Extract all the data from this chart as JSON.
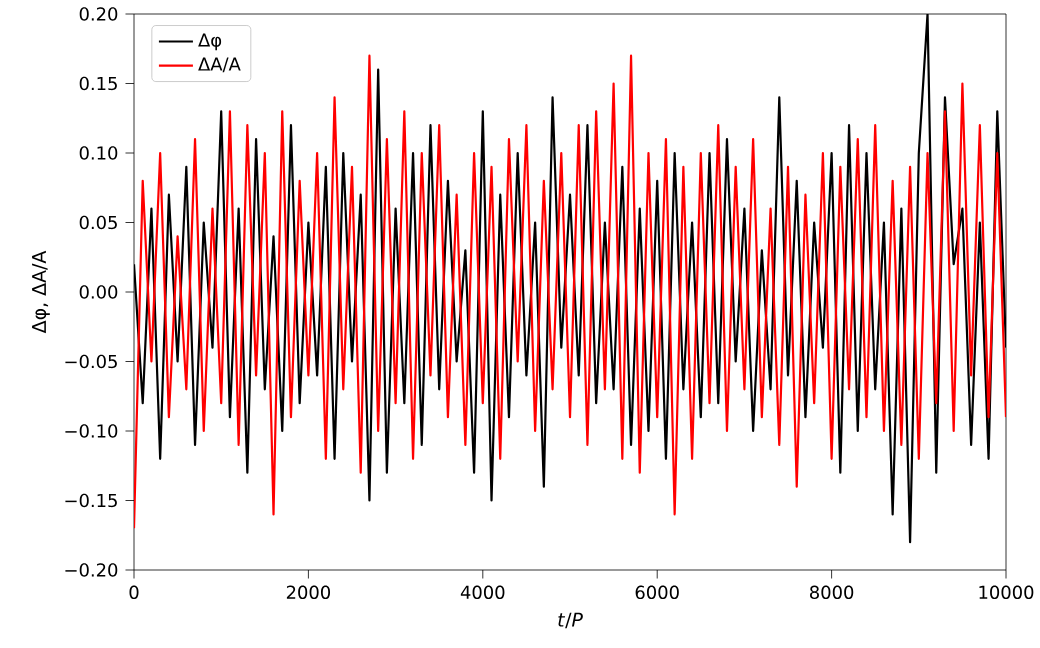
{
  "chart_data": {
    "type": "line",
    "xlabel": "*t*/*P*",
    "ylabel": "Δφ, ΔA/A",
    "legend": "top left",
    "grid": false,
    "marker": "none",
    "line_style": "solid",
    "xlim": [
      0,
      10000
    ],
    "xticks": [
      0,
      2000,
      4000,
      6000,
      8000,
      10000
    ],
    "ylim": [
      -0.2,
      0.2
    ],
    "yticks": [
      {
        "value": -0.2,
        "label": "−0.20"
      },
      {
        "value": -0.15,
        "label": "−0.15"
      },
      {
        "value": -0.1,
        "label": "−0.10"
      },
      {
        "value": -0.05,
        "label": "−0.05"
      },
      {
        "value": 0,
        "label": "0.00"
      },
      {
        "value": 0.05,
        "label": "0.05"
      },
      {
        "value": 0.1,
        "label": "0.10"
      },
      {
        "value": 0.15,
        "label": "0.15"
      },
      {
        "value": 0.2,
        "label": "0.20"
      }
    ],
    "x": [
      0,
      100,
      200,
      300,
      400,
      500,
      600,
      700,
      800,
      900,
      1000,
      1100,
      1200,
      1300,
      1400,
      1500,
      1600,
      1700,
      1800,
      1900,
      2000,
      2100,
      2200,
      2300,
      2400,
      2500,
      2600,
      2700,
      2800,
      2900,
      3000,
      3100,
      3200,
      3300,
      3400,
      3500,
      3600,
      3700,
      3800,
      3900,
      4000,
      4100,
      4200,
      4300,
      4400,
      4500,
      4600,
      4700,
      4800,
      4900,
      5000,
      5100,
      5200,
      5300,
      5400,
      5500,
      5600,
      5700,
      5800,
      5900,
      6000,
      6100,
      6200,
      6300,
      6400,
      6500,
      6600,
      6700,
      6800,
      6900,
      7000,
      7100,
      7200,
      7300,
      7400,
      7500,
      7600,
      7700,
      7800,
      7900,
      8000,
      8100,
      8200,
      8300,
      8400,
      8500,
      8600,
      8700,
      8800,
      8900,
      9000,
      9100,
      9200,
      9300,
      9400,
      9500,
      9600,
      9700,
      9800,
      9900,
      10000
    ],
    "series": [
      {
        "name": "Δφ",
        "color": "#000000",
        "values": [
          0.02,
          -0.08,
          0.06,
          -0.12,
          0.07,
          -0.05,
          0.09,
          -0.11,
          0.05,
          -0.04,
          0.13,
          -0.09,
          0.06,
          -0.13,
          0.11,
          -0.07,
          0.04,
          -0.1,
          0.12,
          -0.08,
          0.05,
          -0.06,
          0.09,
          -0.12,
          0.1,
          -0.05,
          0.07,
          -0.15,
          0.16,
          -0.13,
          0.06,
          -0.08,
          0.1,
          -0.11,
          0.12,
          -0.07,
          0.08,
          -0.05,
          0.03,
          -0.13,
          0.13,
          -0.15,
          0.07,
          -0.09,
          0.1,
          -0.06,
          0.05,
          -0.14,
          0.14,
          -0.04,
          0.07,
          -0.06,
          0.12,
          -0.08,
          0.05,
          -0.07,
          0.09,
          -0.11,
          0.06,
          -0.1,
          0.08,
          -0.12,
          0.1,
          -0.07,
          0.05,
          -0.09,
          0.1,
          -0.08,
          0.11,
          -0.05,
          0.06,
          -0.1,
          0.03,
          -0.07,
          0.14,
          -0.06,
          0.08,
          -0.09,
          0.05,
          -0.04,
          0.1,
          -0.13,
          0.12,
          -0.1,
          0.1,
          -0.07,
          0.05,
          -0.16,
          0.06,
          -0.18,
          0.1,
          0.2,
          -0.13,
          0.14,
          0.02,
          0.06,
          -0.11,
          0.05,
          -0.12,
          0.13,
          -0.04
        ]
      },
      {
        "name": "ΔA/A",
        "color": "#ff0000",
        "values": [
          -0.17,
          0.08,
          -0.05,
          0.1,
          -0.09,
          0.04,
          -0.07,
          0.11,
          -0.1,
          0.06,
          -0.08,
          0.13,
          -0.11,
          0.12,
          -0.06,
          0.1,
          -0.16,
          0.13,
          -0.09,
          0.08,
          -0.06,
          0.1,
          -0.12,
          0.14,
          -0.07,
          0.09,
          -0.13,
          0.17,
          -0.1,
          0.11,
          -0.08,
          0.13,
          -0.12,
          0.1,
          -0.06,
          0.12,
          -0.09,
          0.07,
          -0.11,
          0.1,
          -0.08,
          0.09,
          -0.12,
          0.11,
          -0.05,
          0.12,
          -0.1,
          0.08,
          -0.07,
          0.1,
          -0.09,
          0.12,
          -0.11,
          0.13,
          -0.07,
          0.15,
          -0.12,
          0.17,
          -0.13,
          0.1,
          -0.09,
          0.11,
          -0.16,
          0.09,
          -0.12,
          0.1,
          -0.08,
          0.12,
          -0.1,
          0.09,
          -0.07,
          0.11,
          -0.09,
          0.06,
          -0.11,
          0.09,
          -0.14,
          0.07,
          -0.08,
          0.1,
          -0.12,
          0.09,
          -0.07,
          0.11,
          -0.09,
          0.12,
          -0.1,
          0.08,
          -0.11,
          0.09,
          -0.12,
          0.1,
          -0.08,
          0.13,
          -0.1,
          0.15,
          -0.06,
          0.12,
          -0.09,
          0.1,
          -0.09
        ]
      }
    ]
  }
}
